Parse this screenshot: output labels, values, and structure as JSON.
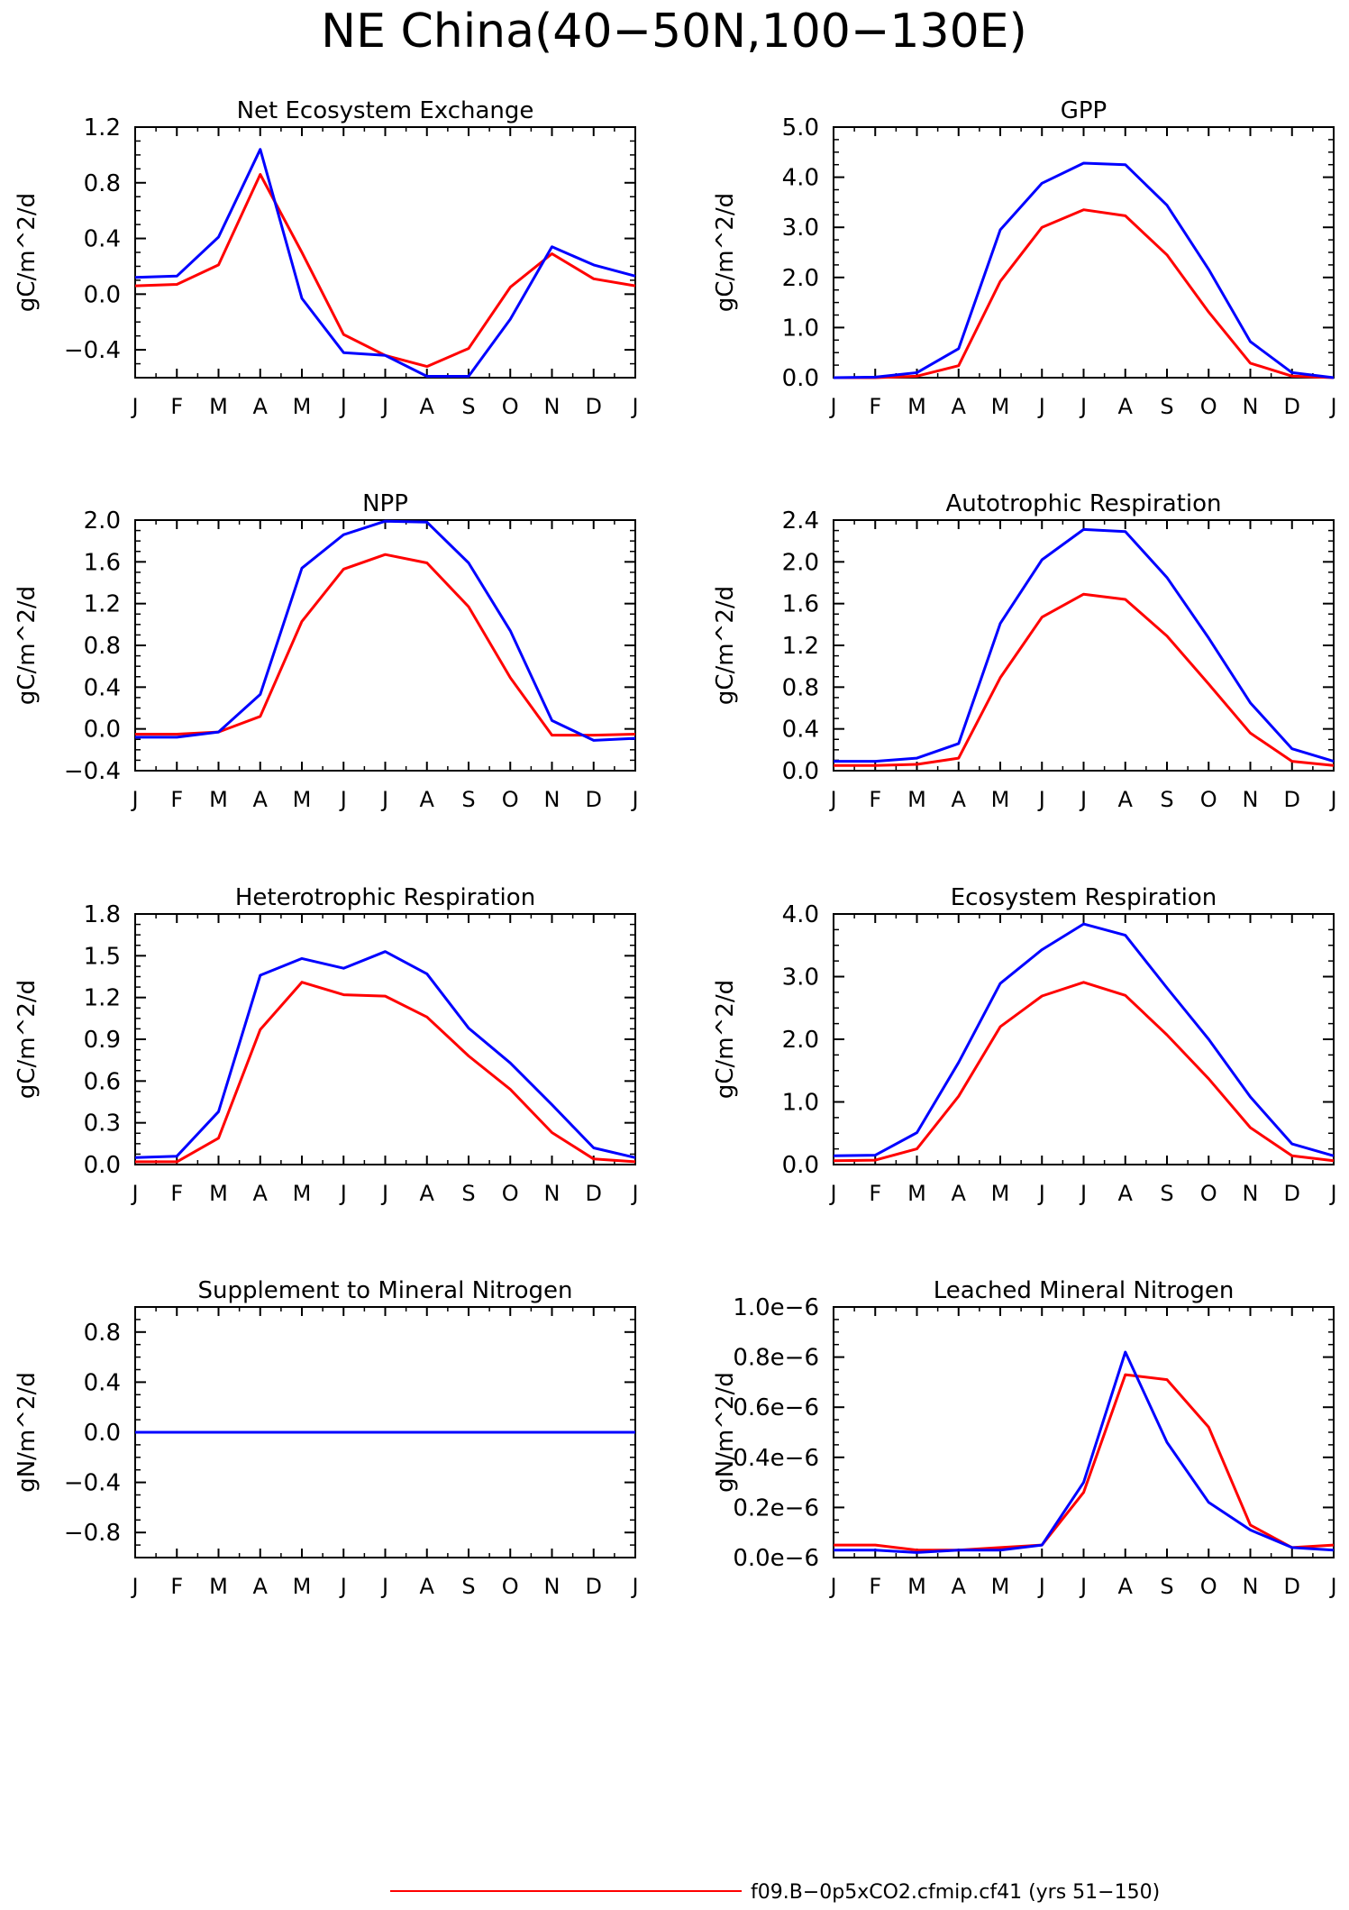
{
  "title": "NE China(40−50N,100−130E)",
  "colors": {
    "red": "#ff0000",
    "blue": "#0000ff",
    "axis": "#000000"
  },
  "legend": {
    "entries": [
      {
        "label": "f09.B−0p5xCO2.cfmip.cf41 (yrs 51−150)",
        "color": "#ff0000"
      }
    ]
  },
  "chart_data": [
    {
      "type": "line",
      "title": "Net Ecosystem Exchange",
      "ylabel": "gC/m^2/d",
      "x": [
        "J",
        "F",
        "M",
        "A",
        "M",
        "J",
        "J",
        "A",
        "S",
        "O",
        "N",
        "D",
        "J"
      ],
      "ylim": [
        -0.6,
        1.2
      ],
      "yticks": [
        -0.4,
        0.0,
        0.4,
        0.8,
        1.2
      ],
      "ytick_labels": [
        "−0.4",
        "0.0",
        "0.4",
        "0.8",
        "1.2"
      ],
      "series": [
        {
          "color": "#ff0000",
          "values": [
            0.06,
            0.07,
            0.21,
            0.86,
            0.3,
            -0.29,
            -0.44,
            -0.52,
            -0.39,
            0.05,
            0.29,
            0.11,
            0.06
          ]
        },
        {
          "color": "#0000ff",
          "values": [
            0.12,
            0.13,
            0.41,
            1.04,
            -0.03,
            -0.42,
            -0.44,
            -0.59,
            -0.59,
            -0.18,
            0.34,
            0.21,
            0.13
          ]
        }
      ]
    },
    {
      "type": "line",
      "title": "GPP",
      "ylabel": "gC/m^2/d",
      "x": [
        "J",
        "F",
        "M",
        "A",
        "M",
        "J",
        "J",
        "A",
        "S",
        "O",
        "N",
        "D",
        "J"
      ],
      "ylim": [
        0.0,
        5.0
      ],
      "yticks": [
        0.0,
        1.0,
        2.0,
        3.0,
        4.0,
        5.0
      ],
      "ytick_labels": [
        "0.0",
        "1.0",
        "2.0",
        "3.0",
        "4.0",
        "5.0"
      ],
      "series": [
        {
          "color": "#ff0000",
          "values": [
            0.0,
            0.0,
            0.03,
            0.24,
            1.92,
            3.0,
            3.35,
            3.23,
            2.45,
            1.31,
            0.29,
            0.03,
            0.0
          ]
        },
        {
          "color": "#0000ff",
          "values": [
            0.0,
            0.01,
            0.1,
            0.58,
            2.95,
            3.88,
            4.28,
            4.25,
            3.44,
            2.16,
            0.72,
            0.1,
            0.0
          ]
        }
      ]
    },
    {
      "type": "line",
      "title": "NPP",
      "ylabel": "gC/m^2/d",
      "x": [
        "J",
        "F",
        "M",
        "A",
        "M",
        "J",
        "J",
        "A",
        "S",
        "O",
        "N",
        "D",
        "J"
      ],
      "ylim": [
        -0.4,
        2.0
      ],
      "yticks": [
        -0.4,
        0.0,
        0.4,
        0.8,
        1.2,
        1.6,
        2.0
      ],
      "ytick_labels": [
        "−0.4",
        "0.0",
        "0.4",
        "0.8",
        "1.2",
        "1.6",
        "2.0"
      ],
      "series": [
        {
          "color": "#ff0000",
          "values": [
            -0.05,
            -0.05,
            -0.03,
            0.12,
            1.03,
            1.53,
            1.67,
            1.59,
            1.17,
            0.49,
            -0.06,
            -0.06,
            -0.05
          ]
        },
        {
          "color": "#0000ff",
          "values": [
            -0.08,
            -0.08,
            -0.03,
            0.33,
            1.54,
            1.86,
            1.99,
            1.98,
            1.59,
            0.94,
            0.08,
            -0.11,
            -0.09
          ]
        }
      ]
    },
    {
      "type": "line",
      "title": "Autotrophic Respiration",
      "ylabel": "gC/m^2/d",
      "x": [
        "J",
        "F",
        "M",
        "A",
        "M",
        "J",
        "J",
        "A",
        "S",
        "O",
        "N",
        "D",
        "J"
      ],
      "ylim": [
        0.0,
        2.4
      ],
      "yticks": [
        0.0,
        0.4,
        0.8,
        1.2,
        1.6,
        2.0,
        2.4
      ],
      "ytick_labels": [
        "0.0",
        "0.4",
        "0.8",
        "1.2",
        "1.6",
        "2.0",
        "2.4"
      ],
      "series": [
        {
          "color": "#ff0000",
          "values": [
            0.05,
            0.05,
            0.06,
            0.12,
            0.89,
            1.47,
            1.69,
            1.64,
            1.29,
            0.83,
            0.36,
            0.09,
            0.05
          ]
        },
        {
          "color": "#0000ff",
          "values": [
            0.09,
            0.09,
            0.12,
            0.26,
            1.41,
            2.02,
            2.31,
            2.29,
            1.85,
            1.27,
            0.65,
            0.21,
            0.09
          ]
        }
      ]
    },
    {
      "type": "line",
      "title": "Heterotrophic Respiration",
      "ylabel": "gC/m^2/d",
      "x": [
        "J",
        "F",
        "M",
        "A",
        "M",
        "J",
        "J",
        "A",
        "S",
        "O",
        "N",
        "D",
        "J"
      ],
      "ylim": [
        0.0,
        1.8
      ],
      "yticks": [
        0.0,
        0.3,
        0.6,
        0.9,
        1.2,
        1.5,
        1.8
      ],
      "ytick_labels": [
        "0.0",
        "0.3",
        "0.6",
        "0.9",
        "1.2",
        "1.5",
        "1.8"
      ],
      "series": [
        {
          "color": "#ff0000",
          "values": [
            0.02,
            0.02,
            0.19,
            0.97,
            1.31,
            1.22,
            1.21,
            1.06,
            0.78,
            0.54,
            0.23,
            0.04,
            0.02
          ]
        },
        {
          "color": "#0000ff",
          "values": [
            0.05,
            0.06,
            0.38,
            1.36,
            1.48,
            1.41,
            1.53,
            1.37,
            0.98,
            0.73,
            0.43,
            0.12,
            0.05
          ]
        }
      ]
    },
    {
      "type": "line",
      "title": "Ecosystem Respiration",
      "ylabel": "gC/m^2/d",
      "x": [
        "J",
        "F",
        "M",
        "A",
        "M",
        "J",
        "J",
        "A",
        "S",
        "O",
        "N",
        "D",
        "J"
      ],
      "ylim": [
        0.0,
        4.0
      ],
      "yticks": [
        0.0,
        1.0,
        2.0,
        3.0,
        4.0
      ],
      "ytick_labels": [
        "0.0",
        "1.0",
        "2.0",
        "3.0",
        "4.0"
      ],
      "series": [
        {
          "color": "#ff0000",
          "values": [
            0.06,
            0.07,
            0.25,
            1.09,
            2.2,
            2.69,
            2.91,
            2.7,
            2.07,
            1.37,
            0.59,
            0.14,
            0.06
          ]
        },
        {
          "color": "#0000ff",
          "values": [
            0.14,
            0.15,
            0.51,
            1.63,
            2.89,
            3.43,
            3.84,
            3.66,
            2.82,
            2.0,
            1.08,
            0.33,
            0.14
          ]
        }
      ]
    },
    {
      "type": "line",
      "title": "Supplement to Mineral Nitrogen",
      "ylabel": "gN/m^2/d",
      "x": [
        "J",
        "F",
        "M",
        "A",
        "M",
        "J",
        "J",
        "A",
        "S",
        "O",
        "N",
        "D",
        "J"
      ],
      "ylim": [
        -1.0,
        1.0
      ],
      "yticks": [
        -0.8,
        -0.4,
        0.0,
        0.4,
        0.8
      ],
      "ytick_labels": [
        "−0.8",
        "−0.4",
        "0.0",
        "0.4",
        "0.8"
      ],
      "series": [
        {
          "color": "#ff0000",
          "values": [
            0,
            0,
            0,
            0,
            0,
            0,
            0,
            0,
            0,
            0,
            0,
            0,
            0
          ]
        },
        {
          "color": "#0000ff",
          "values": [
            0,
            0,
            0,
            0,
            0,
            0,
            0,
            0,
            0,
            0,
            0,
            0,
            0
          ]
        }
      ]
    },
    {
      "type": "line",
      "title": "Leached Mineral Nitrogen",
      "ylabel": "gN/m^2/d",
      "x": [
        "J",
        "F",
        "M",
        "A",
        "M",
        "J",
        "J",
        "A",
        "S",
        "O",
        "N",
        "D",
        "J"
      ],
      "ylim": [
        0.0,
        1e-06
      ],
      "yticks": [
        0.0,
        2e-07,
        4e-07,
        6e-07,
        8e-07,
        1e-06
      ],
      "ytick_labels": [
        "0.0e−6",
        "0.2e−6",
        "0.4e−6",
        "0.6e−6",
        "0.8e−6",
        "1.0e−6"
      ],
      "series": [
        {
          "color": "#ff0000",
          "values": [
            5e-08,
            5e-08,
            3e-08,
            3e-08,
            4e-08,
            5e-08,
            2.6e-07,
            7.3e-07,
            7.1e-07,
            5.2e-07,
            1.3e-07,
            4e-08,
            5e-08
          ]
        },
        {
          "color": "#0000ff",
          "values": [
            3e-08,
            3e-08,
            2e-08,
            3e-08,
            3e-08,
            5e-08,
            3e-07,
            8.2e-07,
            4.6e-07,
            2.2e-07,
            1.1e-07,
            4e-08,
            3e-08
          ]
        }
      ]
    }
  ]
}
